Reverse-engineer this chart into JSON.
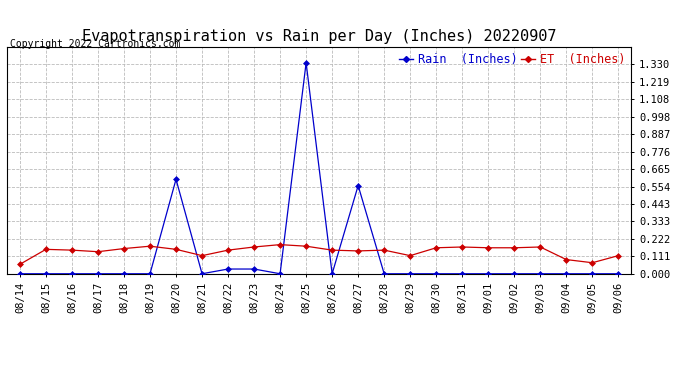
{
  "title": "Evapotranspiration vs Rain per Day (Inches) 20220907",
  "copyright": "Copyright 2022 Cartronics.com",
  "legend_rain": "Rain  (Inches)",
  "legend_et": "ET  (Inches)",
  "dates": [
    "08/14",
    "08/15",
    "08/16",
    "08/17",
    "08/18",
    "08/19",
    "08/20",
    "08/21",
    "08/22",
    "08/23",
    "08/24",
    "08/25",
    "08/26",
    "08/27",
    "08/28",
    "08/29",
    "08/30",
    "08/31",
    "09/01",
    "09/02",
    "09/03",
    "09/04",
    "09/05",
    "09/06"
  ],
  "rain": [
    0.0,
    0.0,
    0.0,
    0.0,
    0.0,
    0.0,
    0.6,
    0.0,
    0.03,
    0.03,
    0.0,
    1.34,
    0.0,
    0.56,
    0.0,
    0.0,
    0.0,
    0.0,
    0.0,
    0.0,
    0.0,
    0.0,
    0.0,
    0.0
  ],
  "et": [
    0.06,
    0.155,
    0.15,
    0.14,
    0.16,
    0.175,
    0.155,
    0.115,
    0.15,
    0.17,
    0.185,
    0.175,
    0.15,
    0.145,
    0.15,
    0.115,
    0.165,
    0.17,
    0.165,
    0.165,
    0.17,
    0.09,
    0.07,
    0.115
  ],
  "ylim": [
    0.0,
    1.441
  ],
  "yticks": [
    0.0,
    0.111,
    0.222,
    0.333,
    0.443,
    0.554,
    0.665,
    0.776,
    0.887,
    0.998,
    1.108,
    1.219,
    1.33
  ],
  "rain_color": "#0000cc",
  "et_color": "#cc0000",
  "grid_color": "#bbbbbb",
  "background_color": "#ffffff",
  "title_fontsize": 11,
  "tick_fontsize": 7.5,
  "legend_fontsize": 8.5,
  "copyright_fontsize": 7
}
